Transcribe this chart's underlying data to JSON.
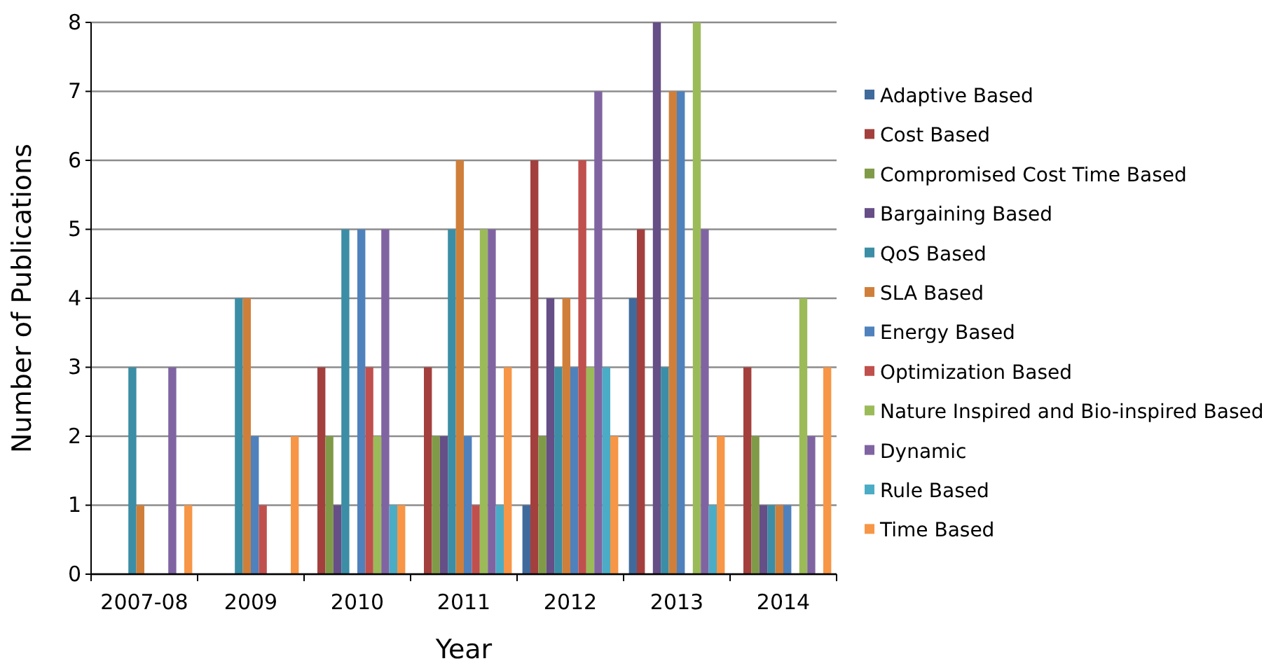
{
  "chart_data": {
    "type": "bar",
    "xlabel": "Year",
    "ylabel": "Number of Publications",
    "categories": [
      "2007-08",
      "2009",
      "2010",
      "2011",
      "2012",
      "2013",
      "2014"
    ],
    "ylim": [
      0,
      8
    ],
    "yticks": [
      0,
      1,
      2,
      3,
      4,
      5,
      6,
      7,
      8
    ],
    "grid": "y",
    "legend": "right",
    "series": [
      {
        "name": "Adaptive Based",
        "color": "#416a9c",
        "values": [
          0,
          0,
          0,
          0,
          1,
          4,
          0
        ]
      },
      {
        "name": "Cost Based",
        "color": "#a3403d",
        "values": [
          0,
          0,
          3,
          3,
          6,
          5,
          3
        ]
      },
      {
        "name": "Compromised Cost Time Based",
        "color": "#809b48",
        "values": [
          0,
          0,
          2,
          2,
          2,
          0,
          2
        ]
      },
      {
        "name": "Bargaining Based",
        "color": "#664e86",
        "values": [
          0,
          0,
          1,
          2,
          4,
          8,
          1
        ]
      },
      {
        "name": "QoS Based",
        "color": "#3b8ea5",
        "values": [
          3,
          4,
          5,
          5,
          3,
          3,
          1
        ]
      },
      {
        "name": "SLA Based",
        "color": "#d07f3a",
        "values": [
          1,
          4,
          0,
          6,
          4,
          7,
          1
        ]
      },
      {
        "name": "Energy Based",
        "color": "#4f81bd",
        "values": [
          0,
          2,
          5,
          2,
          3,
          7,
          1
        ]
      },
      {
        "name": "Optimization Based",
        "color": "#c0504d",
        "values": [
          0,
          1,
          3,
          1,
          6,
          0,
          0
        ]
      },
      {
        "name": "Nature Inspired and Bio-inspired Based",
        "color": "#9bbb59",
        "values": [
          0,
          0,
          2,
          5,
          3,
          8,
          4
        ]
      },
      {
        "name": "Dynamic",
        "color": "#8064a2",
        "values": [
          3,
          0,
          5,
          5,
          7,
          5,
          2
        ]
      },
      {
        "name": "Rule Based",
        "color": "#4bacc6",
        "values": [
          0,
          0,
          1,
          1,
          3,
          1,
          0
        ]
      },
      {
        "name": "Time Based",
        "color": "#f79646",
        "values": [
          1,
          2,
          1,
          3,
          2,
          2,
          3
        ]
      }
    ]
  }
}
